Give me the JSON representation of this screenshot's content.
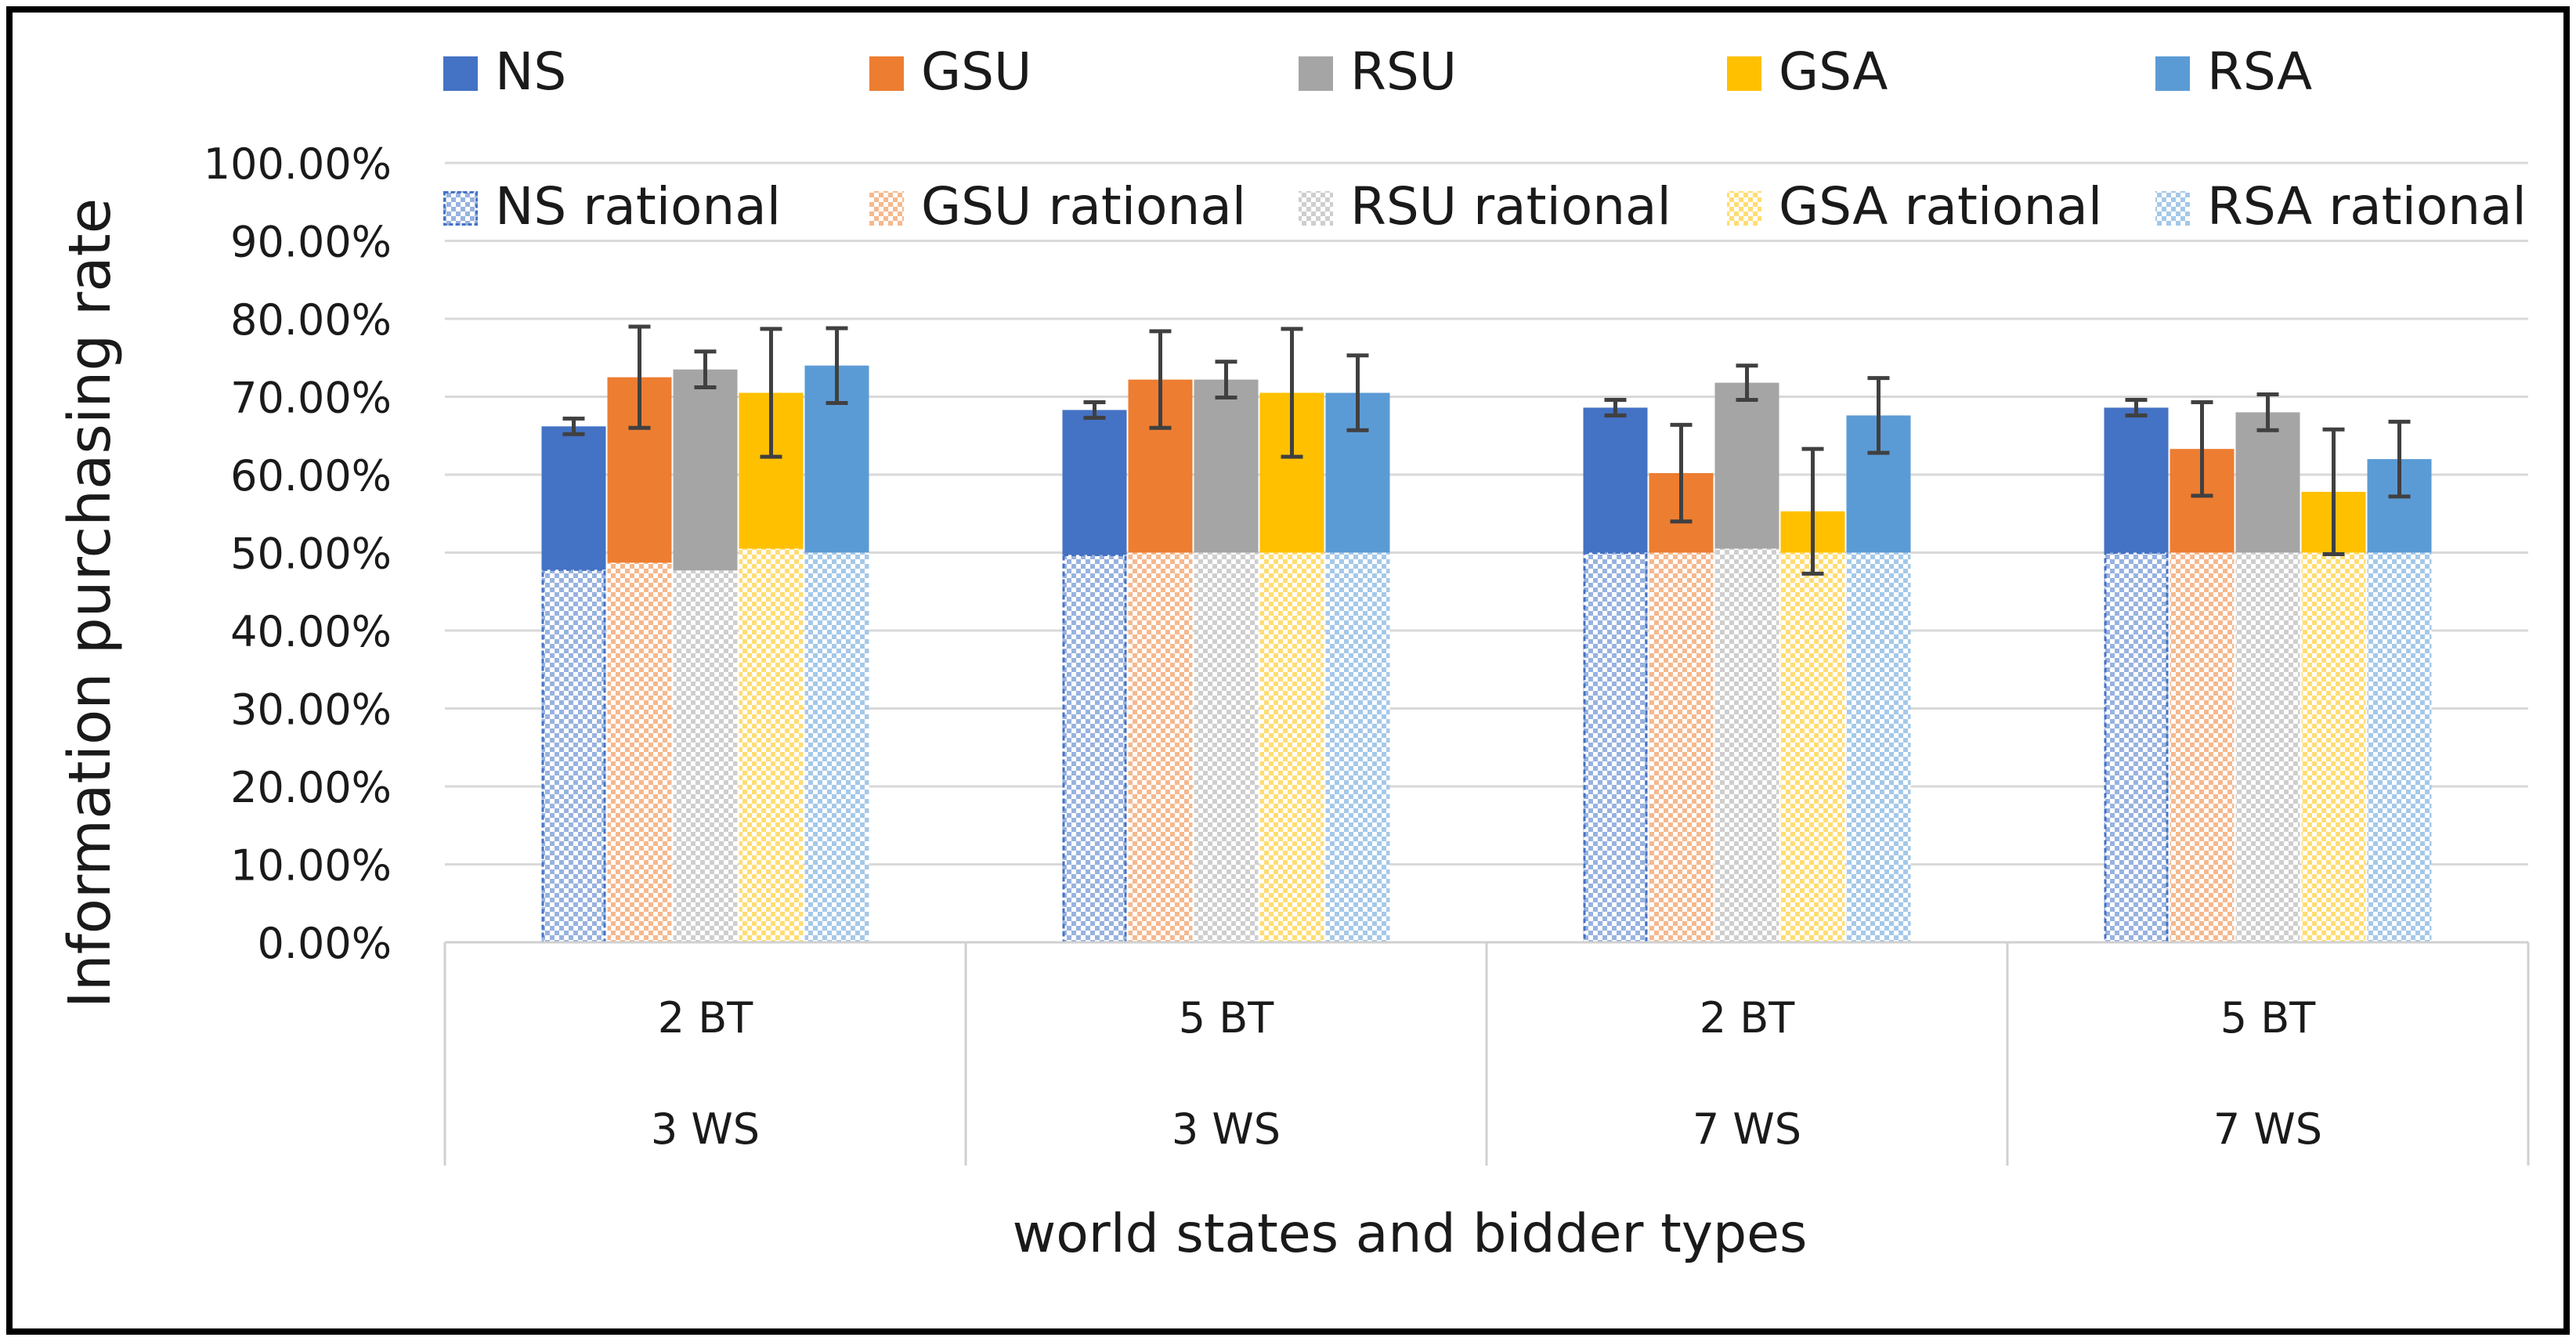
{
  "chart_data": {
    "type": "bar",
    "title": "",
    "xlabel": "world states and bidder types",
    "ylabel": "Information purchasing rate",
    "ylim": [
      0,
      1
    ],
    "yticks": [
      "0.00%",
      "10.00%",
      "20.00%",
      "30.00%",
      "40.00%",
      "50.00%",
      "60.00%",
      "70.00%",
      "80.00%",
      "90.00%",
      "100.00%"
    ],
    "grid": true,
    "legend_position": "top",
    "groups": [
      {
        "bt": "2 BT",
        "ws": "3 WS"
      },
      {
        "bt": "5 BT",
        "ws": "3 WS"
      },
      {
        "bt": "2 BT",
        "ws": "7 WS"
      },
      {
        "bt": "5 BT",
        "ws": "7 WS"
      }
    ],
    "outer_categories": [
      "3 WS",
      "7 WS"
    ],
    "series": [
      {
        "name": "NS",
        "color": "#4472C4",
        "values": [
          0.662,
          0.683,
          0.686,
          0.686
        ],
        "errors": [
          0.01,
          0.01,
          0.01,
          0.01
        ]
      },
      {
        "name": "GSU",
        "color": "#ED7D31",
        "values": [
          0.725,
          0.722,
          0.602,
          0.633
        ],
        "errors": [
          0.065,
          0.062,
          0.062,
          0.06
        ]
      },
      {
        "name": "RSU",
        "color": "#A5A5A5",
        "values": [
          0.735,
          0.722,
          0.718,
          0.68
        ],
        "errors": [
          0.023,
          0.023,
          0.022,
          0.023
        ]
      },
      {
        "name": "GSA",
        "color": "#FFC000",
        "values": [
          0.705,
          0.705,
          0.553,
          0.578
        ],
        "errors": [
          0.082,
          0.082,
          0.08,
          0.08
        ]
      },
      {
        "name": "RSA",
        "color": "#5B9BD5",
        "values": [
          0.74,
          0.705,
          0.676,
          0.62
        ],
        "errors": [
          0.048,
          0.048,
          0.048,
          0.048
        ]
      }
    ],
    "rational_series": [
      {
        "name": "NS rational",
        "color": "#4472C4",
        "values": [
          0.478,
          0.497,
          0.5,
          0.5
        ]
      },
      {
        "name": "GSU rational",
        "color": "#ED7D31",
        "values": [
          0.487,
          0.5,
          0.5,
          0.5
        ]
      },
      {
        "name": "RSU rational",
        "color": "#A5A5A5",
        "values": [
          0.477,
          0.5,
          0.505,
          0.5
        ]
      },
      {
        "name": "GSA rational",
        "color": "#FFC000",
        "values": [
          0.505,
          0.5,
          0.5,
          0.5
        ]
      },
      {
        "name": "RSA rational",
        "color": "#5B9BD5",
        "values": [
          0.5,
          0.5,
          0.5,
          0.5
        ]
      }
    ]
  }
}
